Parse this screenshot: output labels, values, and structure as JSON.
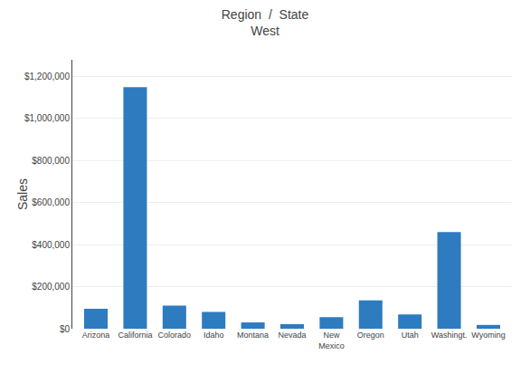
{
  "chart_data": {
    "type": "bar",
    "title": "Region  /  State",
    "subtitle": "West",
    "ylabel": "Sales",
    "categories": [
      "Arizona",
      "California",
      "Colorado",
      "Idaho",
      "Montana",
      "Nevada",
      "New\nMexico",
      "Oregon",
      "Utah",
      "Washingt.",
      "Wyoming"
    ],
    "values": [
      95000,
      1150000,
      110000,
      80000,
      30000,
      22000,
      55000,
      135000,
      68000,
      460000,
      18000
    ],
    "color": "#2e7bbf",
    "ylim": [
      0,
      1280000
    ],
    "yticks": [
      {
        "value": 0,
        "label": "$0"
      },
      {
        "value": 200000,
        "label": "$200,000"
      },
      {
        "value": 400000,
        "label": "$400,000"
      },
      {
        "value": 600000,
        "label": "$600,000"
      },
      {
        "value": 800000,
        "label": "$800,000"
      },
      {
        "value": 1000000,
        "label": "$1,000,000"
      },
      {
        "value": 1200000,
        "label": "$1,200,000"
      }
    ],
    "grid": true
  }
}
